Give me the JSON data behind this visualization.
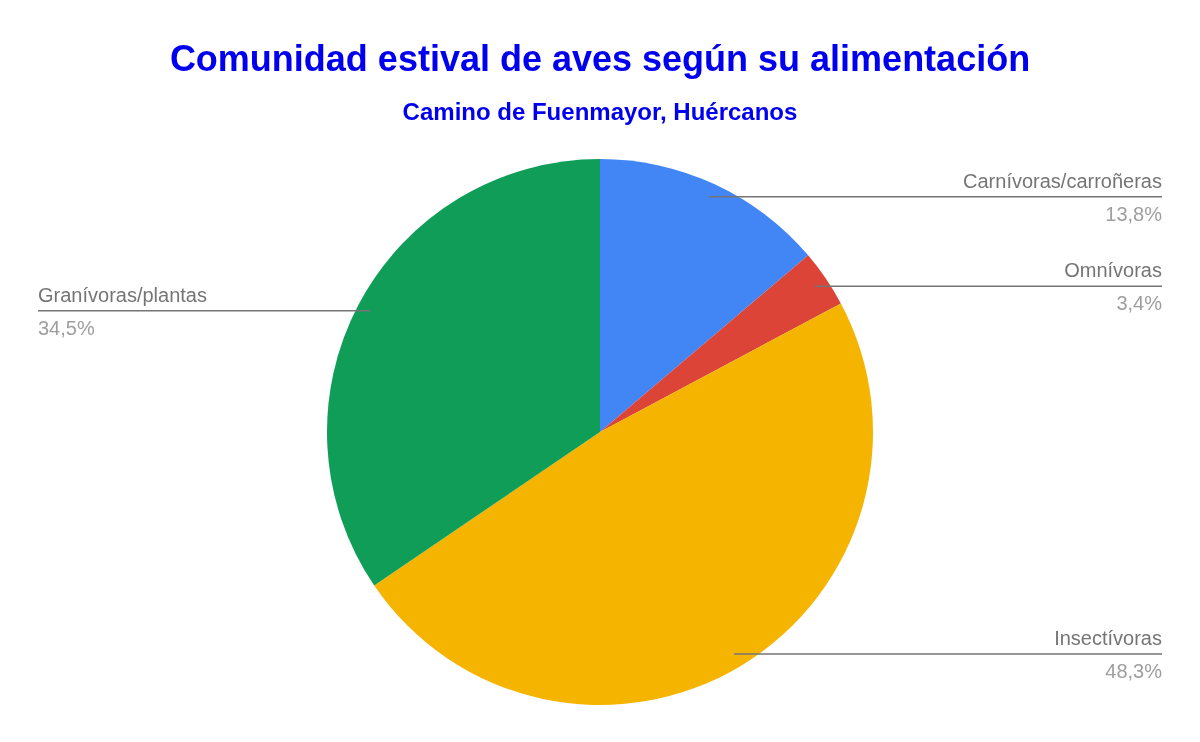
{
  "chart_data": {
    "type": "pie",
    "title": "Comunidad estival de aves según su alimentación",
    "subtitle": "Camino de Fuenmayor, Huércanos",
    "categories": [
      "Carnívoras/carroñeras",
      "Omnívoras",
      "Insectívoras",
      "Granívoras/plantas"
    ],
    "values": [
      13.8,
      3.4,
      48.3,
      34.5
    ],
    "colors": [
      "#4285f4",
      "#db4437",
      "#f4b400",
      "#0f9d58"
    ],
    "value_labels": [
      "13,8%",
      "3,4%",
      "48,3%",
      "34,5%"
    ]
  }
}
